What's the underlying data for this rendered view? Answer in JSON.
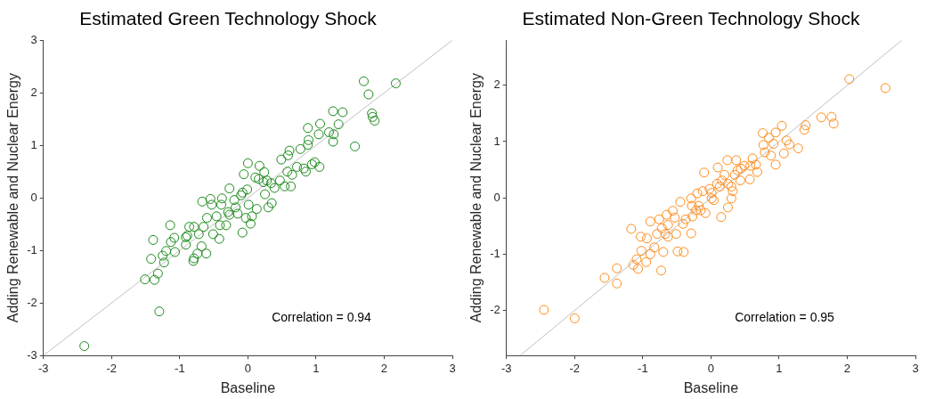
{
  "chart_data": [
    {
      "type": "scatter",
      "title": "Estimated Green Technology Shock",
      "xlabel": "Baseline",
      "ylabel": "Adding Renewable and Nuclear Energy",
      "xlim": [
        -3,
        3
      ],
      "ylim": [
        -3,
        3
      ],
      "xticks": [
        -3,
        -2,
        -1,
        0,
        1,
        2,
        3
      ],
      "yticks": [
        -3,
        -2,
        -1,
        0,
        1,
        2,
        3
      ],
      "grid": false,
      "annotations": [
        "Correlation = 0.94"
      ],
      "series": [
        {
          "color": "#1a8a1a",
          "marker": "circle",
          "x": [
            -2.4,
            -1.3,
            -1.51,
            -1.37,
            -1.32,
            -1.42,
            -1.23,
            -1.25,
            -1.39,
            -1.2,
            -1.14,
            -1.13,
            -1.08,
            -1.07,
            -0.91,
            -0.89,
            -0.86,
            -0.8,
            -0.79,
            -0.74,
            -0.68,
            -0.61,
            -0.67,
            -0.55,
            -0.53,
            -0.38,
            -0.27,
            -0.6,
            -0.46,
            -0.41,
            -0.42,
            -0.51,
            -0.65,
            -0.08,
            0.04,
            -0.03,
            -0.15,
            -0.27,
            -0.32,
            -0.2,
            -0.08,
            -0.01,
            -0.06,
            0.0,
            0.17,
            0.24,
            0.16,
            0.23,
            0.25,
            0.3,
            0.35,
            0.13,
            0.06,
            0.01,
            0.39,
            0.49,
            0.61,
            0.59,
            0.54,
            0.63,
            0.58,
            0.65,
            0.77,
            0.88,
            0.89,
            0.88,
            1.06,
            0.82,
            0.85,
            0.98,
            1.05,
            0.94,
            1.04,
            1.19,
            1.25,
            1.26,
            1.25,
            1.39,
            1.33,
            1.57,
            1.7,
            1.77,
            1.82,
            1.83,
            1.86,
            2.17,
            0.28,
            0.34,
            0.11,
            -0.1,
            -0.18,
            -0.29,
            -0.39,
            -0.79,
            -0.72,
            -0.91,
            0.47,
            0.72
          ],
          "values": [
            -2.82,
            -2.16,
            -1.55,
            -1.56,
            -1.44,
            -1.16,
            -1.23,
            -1.1,
            -0.8,
            -1.01,
            -0.52,
            -0.84,
            -0.76,
            -1.03,
            -0.89,
            -0.72,
            -0.55,
            -1.2,
            -1.15,
            -1.06,
            -0.92,
            -1.06,
            -0.07,
            -0.02,
            -0.13,
            -0.01,
            0.18,
            -0.38,
            -0.35,
            -0.52,
            -0.78,
            -0.69,
            -0.55,
            -0.66,
            -0.49,
            -0.38,
            -0.3,
            -0.32,
            -0.52,
            -0.04,
            0.1,
            0.16,
            0.45,
            0.66,
            0.61,
            0.49,
            0.36,
            0.3,
            0.07,
            -0.18,
            -0.1,
            -0.21,
            -0.35,
            -0.13,
            0.19,
            0.73,
            0.9,
            0.81,
            0.22,
            0.22,
            0.5,
            0.44,
            0.93,
            1.01,
            1.1,
            1.33,
            1.41,
            0.56,
            0.5,
            0.68,
            0.59,
            0.64,
            1.21,
            1.25,
            1.07,
            1.21,
            1.65,
            1.63,
            1.4,
            0.98,
            2.22,
            1.97,
            1.61,
            1.54,
            1.47,
            2.18,
            0.33,
            0.28,
            0.39,
            0.05,
            -0.18,
            -0.27,
            -0.13,
            -0.55,
            -0.69,
            -0.75,
            0.33,
            0.59
          ]
        },
        {
          "type": "line",
          "color": "#c0c0c0",
          "marker": "none",
          "x": [
            -3,
            3
          ],
          "values": [
            -3,
            3
          ]
        }
      ]
    },
    {
      "type": "scatter",
      "title": "Estimated Non-Green Technology Shock",
      "xlabel": "Baseline",
      "ylabel": "Adding Renewable and Nuclear Energy",
      "xlim": [
        -3,
        3
      ],
      "ylim": [
        -2.8,
        2.8
      ],
      "xticks": [
        -3,
        -2,
        -1,
        0,
        1,
        2,
        3
      ],
      "yticks": [
        -2,
        -1,
        0,
        1,
        2
      ],
      "grid": false,
      "annotations": [
        "Correlation = 0.95"
      ],
      "series": [
        {
          "color": "#ff8c1a",
          "marker": "circle",
          "x": [
            -2.45,
            -2.0,
            -1.56,
            -1.38,
            -1.38,
            -1.17,
            -1.14,
            -1.07,
            -1.09,
            -0.95,
            -1.03,
            -0.94,
            -1.02,
            -0.89,
            -0.83,
            -0.73,
            -0.7,
            -0.89,
            -0.76,
            -0.72,
            -0.65,
            -0.56,
            -0.63,
            -0.63,
            -0.51,
            -0.49,
            -0.4,
            -0.45,
            -0.41,
            -0.29,
            -0.28,
            -0.27,
            -0.2,
            -0.12,
            -0.1,
            -0.15,
            -0.08,
            -0.02,
            0.04,
            0.1,
            0.15,
            0.13,
            0.2,
            0.24,
            0.25,
            0.3,
            0.32,
            0.37,
            0.39,
            0.43,
            0.49,
            0.57,
            0.61,
            0.66,
            0.68,
            0.76,
            0.77,
            0.79,
            0.85,
            0.88,
            0.92,
            0.95,
            0.95,
            1.04,
            1.07,
            1.11,
            1.15,
            1.28,
            1.37,
            1.39,
            1.62,
            1.77,
            1.8,
            2.03,
            2.56,
            -0.37,
            -0.53,
            -0.67,
            -0.79,
            -0.18,
            0.01,
            0.09,
            0.16,
            0.25,
            0.35,
            0.44,
            0.58,
            -0.29,
            -0.22,
            0.01,
            0.3
          ],
          "values": [
            -1.99,
            -2.14,
            -1.42,
            -1.25,
            -1.52,
            -0.55,
            -1.19,
            -1.26,
            -1.09,
            -1.14,
            -0.69,
            -0.72,
            -0.94,
            -1.0,
            -0.88,
            -1.29,
            -0.96,
            -0.42,
            -0.38,
            -0.54,
            -0.3,
            -0.23,
            -0.48,
            -0.69,
            -0.64,
            -0.95,
            -0.96,
            -0.07,
            -0.46,
            -0.63,
            -0.14,
            -0.33,
            0.08,
            0.12,
            0.45,
            -0.22,
            -0.27,
            0.16,
            -0.04,
            0.54,
            -0.34,
            0.2,
            0.41,
            0.67,
            -0.17,
            -0.01,
            0.12,
            0.67,
            0.49,
            0.31,
            0.57,
            0.33,
            0.7,
            0.59,
            0.46,
            1.15,
            0.94,
            0.81,
            1.07,
            0.75,
            0.96,
            0.59,
            1.16,
            1.28,
            0.79,
            1.02,
            0.95,
            0.88,
            1.21,
            1.29,
            1.43,
            1.44,
            1.32,
            2.11,
            1.95,
            -0.38,
            -0.35,
            -0.64,
            -0.64,
            -0.14,
            -0.01,
            0.25,
            0.31,
            0.25,
            0.41,
            0.52,
            0.57,
            -0.01,
            -0.22,
            0.09,
            0.2
          ]
        },
        {
          "type": "line",
          "color": "#c0c0c0",
          "marker": "none",
          "x": [
            -2.8,
            2.8
          ],
          "values": [
            -2.8,
            2.8
          ]
        }
      ]
    }
  ]
}
